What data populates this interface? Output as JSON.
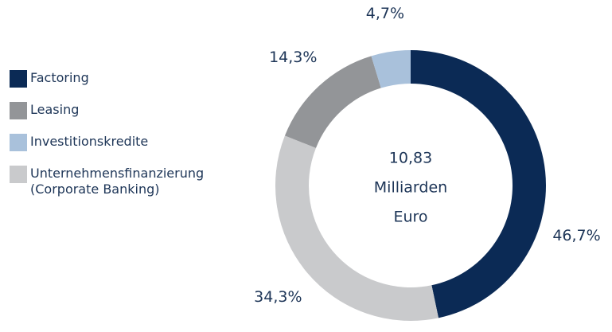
{
  "chart_data": {
    "type": "donut",
    "center_label": [
      "10,83",
      "Milliarden",
      "Euro"
    ],
    "categories": [
      "Factoring",
      "Unternehmensfinanzierung (Corporate Banking)",
      "Leasing",
      "Investitionskredite"
    ],
    "values": [
      46.7,
      34.3,
      14.3,
      4.7
    ],
    "value_labels": [
      "46,7%",
      "34,3%",
      "14,3%",
      "4,7%"
    ],
    "colors": [
      "#0b2a55",
      "#c9cacc",
      "#939598",
      "#a9c1db"
    ],
    "legend_order": [
      0,
      2,
      3,
      1
    ],
    "legend": "left"
  }
}
